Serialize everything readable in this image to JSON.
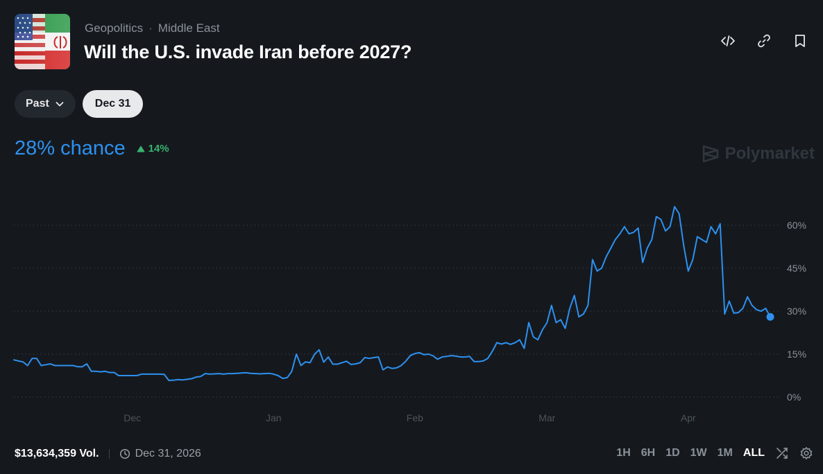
{
  "header": {
    "category": "Geopolitics",
    "subcategory": "Middle East",
    "title": "Will the U.S. invade Iran before 2027?",
    "icons": [
      "code-embed-icon",
      "link-icon",
      "bookmark-icon"
    ]
  },
  "chips": {
    "past_label": "Past",
    "date_label": "Dec 31"
  },
  "summary": {
    "chance_text": "28% chance",
    "delta_text": "14%"
  },
  "brand": {
    "name": "Polymarket"
  },
  "footer": {
    "volume": "$13,634,359 Vol.",
    "end_date": "Dec 31, 2026",
    "ranges": [
      "1H",
      "6H",
      "1D",
      "1W",
      "1M",
      "ALL"
    ],
    "active_range": "ALL"
  },
  "colors": {
    "line": "#2e91f0",
    "up": "#39b26e",
    "bg": "#15191e"
  },
  "chart_data": {
    "type": "line",
    "x_ticks": [
      {
        "label": "Dec",
        "x": 26
      },
      {
        "label": "Jan",
        "x": 57
      },
      {
        "label": "Feb",
        "x": 88
      },
      {
        "label": "Mar",
        "x": 117
      },
      {
        "label": "Apr",
        "x": 148
      }
    ],
    "y_ticks": [
      {
        "label": "60%",
        "value": 60
      },
      {
        "label": "45%",
        "value": 45
      },
      {
        "label": "30%",
        "value": 30
      },
      {
        "label": "15%",
        "value": 15
      },
      {
        "label": "0%",
        "value": 0
      }
    ],
    "ylim": [
      0,
      60
    ],
    "xlim": [
      0,
      166
    ],
    "grid": true,
    "series": [
      {
        "values": [
          [
            0,
            13
          ],
          [
            1,
            12.6
          ],
          [
            2,
            12.3
          ],
          [
            3,
            11
          ],
          [
            4,
            13.5
          ],
          [
            5,
            13.5
          ],
          [
            6,
            11
          ],
          [
            7,
            11.3
          ],
          [
            8,
            11.6
          ],
          [
            9,
            11
          ],
          [
            10,
            11
          ],
          [
            11,
            11
          ],
          [
            12,
            11
          ],
          [
            13,
            11
          ],
          [
            14,
            10.6
          ],
          [
            15,
            10.6
          ],
          [
            16,
            11.6
          ],
          [
            17,
            9
          ],
          [
            18,
            9
          ],
          [
            19,
            8.8
          ],
          [
            20,
            9
          ],
          [
            21,
            8.6
          ],
          [
            22,
            8.6
          ],
          [
            23,
            7.5
          ],
          [
            24,
            7.5
          ],
          [
            25,
            7.5
          ],
          [
            26,
            7.5
          ],
          [
            27,
            7.5
          ],
          [
            28,
            8
          ],
          [
            29,
            8
          ],
          [
            30,
            8
          ],
          [
            31,
            8
          ],
          [
            32,
            8
          ],
          [
            33,
            7.9
          ],
          [
            34,
            5.8
          ],
          [
            35,
            5.9
          ],
          [
            36,
            6.1
          ],
          [
            37,
            6
          ],
          [
            38,
            6.2
          ],
          [
            39,
            6.4
          ],
          [
            40,
            7
          ],
          [
            41,
            7.2
          ],
          [
            42,
            8.2
          ],
          [
            43,
            8
          ],
          [
            44,
            8.1
          ],
          [
            45,
            8.2
          ],
          [
            46,
            8
          ],
          [
            47,
            8.2
          ],
          [
            48,
            8.2
          ],
          [
            49,
            8.3
          ],
          [
            50,
            8.4
          ],
          [
            51,
            8.5
          ],
          [
            52,
            8.3
          ],
          [
            53,
            8.2
          ],
          [
            54,
            8.1
          ],
          [
            55,
            8.2
          ],
          [
            56,
            8.3
          ],
          [
            57,
            8
          ],
          [
            58,
            7.5
          ],
          [
            59,
            6.5
          ],
          [
            60,
            6.8
          ],
          [
            61,
            9
          ],
          [
            62,
            15
          ],
          [
            63,
            11
          ],
          [
            64,
            12.3
          ],
          [
            65,
            12
          ],
          [
            66,
            15
          ],
          [
            67,
            16.5
          ],
          [
            68,
            12.2
          ],
          [
            69,
            14
          ],
          [
            70,
            11.5
          ],
          [
            71,
            11.5
          ],
          [
            72,
            12
          ],
          [
            73,
            12.5
          ],
          [
            74,
            11.4
          ],
          [
            75,
            11.6
          ],
          [
            76,
            12
          ],
          [
            77,
            13.8
          ],
          [
            78,
            13.5
          ],
          [
            79,
            13.8
          ],
          [
            80,
            14
          ],
          [
            81,
            9.5
          ],
          [
            82,
            10.5
          ],
          [
            83,
            10
          ],
          [
            84,
            10.2
          ],
          [
            85,
            11
          ],
          [
            86,
            12.5
          ],
          [
            87,
            14.5
          ],
          [
            88,
            15.2
          ],
          [
            89,
            15.5
          ],
          [
            90,
            14.8
          ],
          [
            91,
            15
          ],
          [
            92,
            14.4
          ],
          [
            93,
            13.2
          ],
          [
            94,
            14
          ],
          [
            95,
            14.2
          ],
          [
            96,
            14.5
          ],
          [
            97,
            14.3
          ],
          [
            98,
            14
          ],
          [
            99,
            14
          ],
          [
            100,
            14.2
          ],
          [
            101,
            12.4
          ],
          [
            102,
            12.4
          ],
          [
            103,
            12.6
          ],
          [
            104,
            13.5
          ],
          [
            105,
            16
          ],
          [
            106,
            19
          ],
          [
            107,
            18.5
          ],
          [
            108,
            19
          ],
          [
            109,
            18.4
          ],
          [
            110,
            19
          ],
          [
            111,
            20
          ],
          [
            112,
            17
          ],
          [
            113,
            26
          ],
          [
            114,
            21
          ],
          [
            115,
            20
          ],
          [
            116,
            23.5
          ],
          [
            117,
            26
          ],
          [
            118,
            32
          ],
          [
            119,
            26
          ],
          [
            120,
            27
          ],
          [
            121,
            24
          ],
          [
            122,
            31
          ],
          [
            123,
            35.5
          ],
          [
            124,
            28
          ],
          [
            125,
            29
          ],
          [
            126,
            32
          ],
          [
            127,
            48
          ],
          [
            128,
            44
          ],
          [
            129,
            45
          ],
          [
            130,
            49
          ],
          [
            131,
            52
          ],
          [
            132,
            55
          ],
          [
            133,
            57
          ],
          [
            134,
            59.5
          ],
          [
            135,
            57
          ],
          [
            136,
            57.5
          ],
          [
            137,
            59
          ],
          [
            138,
            47
          ],
          [
            139,
            52
          ],
          [
            140,
            55
          ],
          [
            141,
            63
          ],
          [
            142,
            62
          ],
          [
            143,
            58
          ],
          [
            144,
            59.5
          ],
          [
            145,
            66.5
          ],
          [
            146,
            64
          ],
          [
            147,
            53
          ],
          [
            148,
            44
          ],
          [
            149,
            48
          ],
          [
            150,
            56
          ],
          [
            151,
            55
          ],
          [
            152,
            54
          ],
          [
            153,
            59.5
          ],
          [
            154,
            57
          ],
          [
            155,
            60.5
          ],
          [
            156,
            29
          ],
          [
            157,
            33.5
          ],
          [
            158,
            29.3
          ],
          [
            159,
            29.5
          ],
          [
            160,
            31
          ],
          [
            161,
            35
          ],
          [
            162,
            32
          ],
          [
            163,
            30.5
          ],
          [
            164,
            30
          ],
          [
            165,
            31
          ],
          [
            166,
            28
          ]
        ]
      }
    ]
  }
}
